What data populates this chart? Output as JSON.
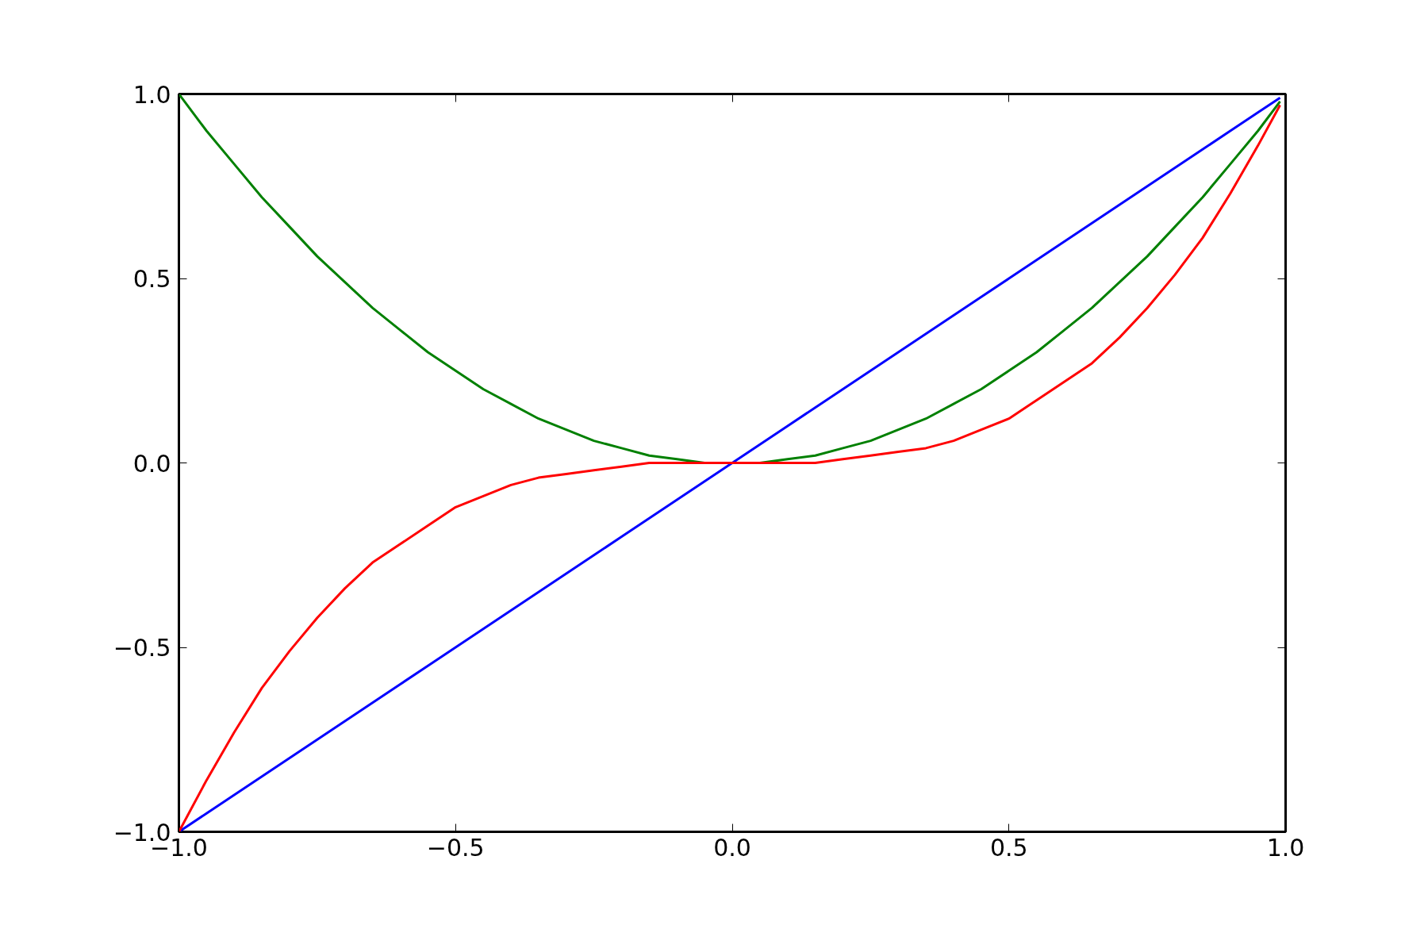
{
  "chart_data": {
    "type": "line",
    "x": [
      -1,
      -0.95,
      -0.9,
      -0.85,
      -0.8,
      -0.75,
      -0.7,
      -0.65,
      -0.6,
      -0.55,
      -0.5,
      -0.45,
      -0.4,
      -0.35,
      -0.3,
      -0.25,
      -0.2,
      -0.15,
      -0.1,
      -0.05,
      0,
      0.05,
      0.1,
      0.15,
      0.2,
      0.25,
      0.3,
      0.35,
      0.4,
      0.45,
      0.5,
      0.55,
      0.6,
      0.65,
      0.7,
      0.75,
      0.8,
      0.85,
      0.9,
      0.95,
      0.99
    ],
    "series": [
      {
        "color": "#0000ff",
        "values": [
          -1,
          -0.95,
          -0.9,
          -0.85,
          -0.8,
          -0.75,
          -0.7,
          -0.65,
          -0.6,
          -0.55,
          -0.5,
          -0.45,
          -0.4,
          -0.35,
          -0.3,
          -0.25,
          -0.2,
          -0.15,
          -0.1,
          -0.05,
          0,
          0.05,
          0.1,
          0.15,
          0.2,
          0.25,
          0.3,
          0.35,
          0.4,
          0.45,
          0.5,
          0.55,
          0.6,
          0.65,
          0.7,
          0.75,
          0.8,
          0.85,
          0.9,
          0.95,
          0.99
        ]
      },
      {
        "color": "#008000",
        "values": [
          1,
          0.9,
          0.81,
          0.72,
          0.64,
          0.56,
          0.49,
          0.42,
          0.36,
          0.3,
          0.25,
          0.2,
          0.16,
          0.12,
          0.09,
          0.06,
          0.04,
          0.02,
          0.01,
          0,
          0,
          0,
          0.01,
          0.02,
          0.04,
          0.06,
          0.09,
          0.12,
          0.16,
          0.2,
          0.25,
          0.3,
          0.36,
          0.42,
          0.49,
          0.56,
          0.64,
          0.72,
          0.81,
          0.9,
          0.98
        ]
      },
      {
        "color": "#ff0000",
        "values": [
          -1,
          -0.86,
          -0.73,
          -0.61,
          -0.51,
          -0.42,
          -0.34,
          -0.27,
          -0.22,
          -0.17,
          -0.12,
          -0.09,
          -0.06,
          -0.04,
          -0.03,
          -0.02,
          -0.01,
          0,
          0,
          0,
          0,
          0,
          0,
          0,
          0.01,
          0.02,
          0.03,
          0.04,
          0.06,
          0.09,
          0.12,
          0.17,
          0.22,
          0.27,
          0.34,
          0.42,
          0.51,
          0.61,
          0.73,
          0.86,
          0.97
        ]
      }
    ],
    "xlim": [
      -1,
      1
    ],
    "ylim": [
      -1,
      1
    ],
    "xticks": [
      {
        "value": -1,
        "label": "−1.0"
      },
      {
        "value": -0.5,
        "label": "−0.5"
      },
      {
        "value": 0,
        "label": "0.0"
      },
      {
        "value": 0.5,
        "label": "0.5"
      },
      {
        "value": 1,
        "label": "1.0"
      }
    ],
    "yticks": [
      {
        "value": -1,
        "label": "−1.0"
      },
      {
        "value": -0.5,
        "label": "−0.5"
      },
      {
        "value": 0,
        "label": "0.0"
      },
      {
        "value": 0.5,
        "label": "0.5"
      },
      {
        "value": 1,
        "label": "1.0"
      }
    ],
    "grid": false,
    "marker": "none",
    "line_style": "solid"
  }
}
